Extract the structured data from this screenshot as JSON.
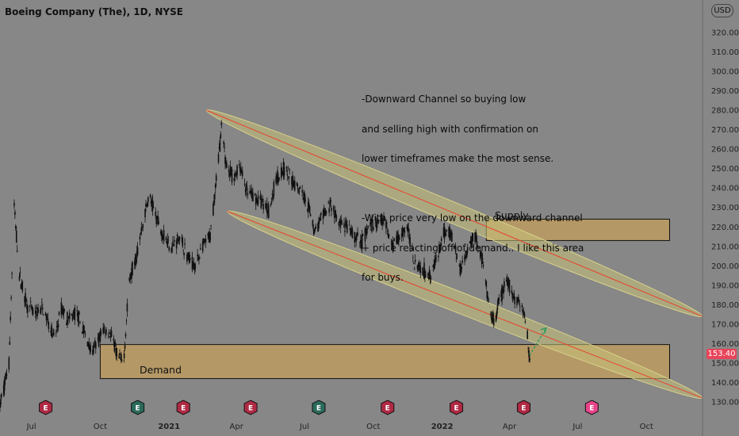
{
  "header": {
    "title": "Boeing Company (The), 1D, NYSE",
    "currency_label": "USD"
  },
  "annotation": {
    "lines": [
      "-Downward Channel so buying low",
      "and selling high with confirmation on",
      "lower timeframes make the most sense.",
      "",
      "-With price very low on the downward channel",
      "+ price reacting off of demand.. I like this area",
      "for buys."
    ]
  },
  "zones": {
    "supply": {
      "label": "Supply",
      "low": 213,
      "high": 224,
      "from": "2022-03",
      "to": "2022-11"
    },
    "demand": {
      "label": "Demand",
      "low": 142,
      "high": 159.5,
      "from": "2020-10",
      "to": "2022-11"
    }
  },
  "last_price": {
    "label": "153.40",
    "value": 153.4
  },
  "colors": {
    "background": "#878787",
    "zone_fill": "#d9a64a",
    "channel_fill": "#c8c27a",
    "channel_line": "#e8412b",
    "price_tag": "#e8445a",
    "up_arrow": "#2e9a5e",
    "candles": "#111111"
  },
  "event_markers": [
    {
      "icon": "earnings-icon",
      "label": "E",
      "color": "#b02a44",
      "date": "2020-07"
    },
    {
      "icon": "earnings-icon",
      "label": "E",
      "color": "#2a6a5a",
      "date": "2020-11"
    },
    {
      "icon": "earnings-icon",
      "label": "E",
      "color": "#b02a44",
      "date": "2021-01"
    },
    {
      "icon": "earnings-icon",
      "label": "E",
      "color": "#b02a44",
      "date": "2021-04"
    },
    {
      "icon": "earnings-icon",
      "label": "E",
      "color": "#2a6a5a",
      "date": "2021-07"
    },
    {
      "icon": "earnings-icon",
      "label": "E",
      "color": "#b02a44",
      "date": "2021-10"
    },
    {
      "icon": "earnings-icon",
      "label": "E",
      "color": "#b02a44",
      "date": "2022-01"
    },
    {
      "icon": "earnings-icon",
      "label": "E",
      "color": "#b02a44",
      "date": "2022-04"
    },
    {
      "icon": "earnings-icon",
      "label": "E",
      "color": "#e8448a",
      "date": "2022-07"
    }
  ],
  "chart_data": {
    "type": "candlestick",
    "title": "Boeing Company (The), 1D, NYSE",
    "xlabel": "",
    "ylabel": "",
    "ylim": [
      124,
      322
    ],
    "y_ticks": [
      "130.00",
      "140.00",
      "150.00",
      "160.00",
      "170.00",
      "180.00",
      "190.00",
      "200.00",
      "210.00",
      "220.00",
      "230.00",
      "240.00",
      "250.00",
      "260.00",
      "270.00",
      "280.00",
      "290.00",
      "300.00",
      "310.00",
      "320.00"
    ],
    "x_ticks": [
      "Jul",
      "Oct",
      "2021",
      "Apr",
      "Jul",
      "Oct",
      "2022",
      "Apr",
      "Jul",
      "Oct"
    ],
    "x_range": [
      "2020-05-20",
      "2022-12-15"
    ],
    "grid": false,
    "series": [
      {
        "points": [
          [
            "2020-05-20",
            128
          ],
          [
            "2020-06-01",
            150
          ],
          [
            "2020-06-08",
            230
          ],
          [
            "2020-06-15",
            195
          ],
          [
            "2020-06-25",
            180
          ],
          [
            "2020-07-05",
            175
          ],
          [
            "2020-07-15",
            178
          ],
          [
            "2020-07-25",
            170
          ],
          [
            "2020-08-01",
            162
          ],
          [
            "2020-08-10",
            178
          ],
          [
            "2020-08-20",
            172
          ],
          [
            "2020-08-30",
            176
          ],
          [
            "2020-09-10",
            165
          ],
          [
            "2020-09-20",
            155
          ],
          [
            "2020-09-30",
            163
          ],
          [
            "2020-10-05",
            167
          ],
          [
            "2020-10-15",
            165
          ],
          [
            "2020-10-25",
            152
          ],
          [
            "2020-11-01",
            150
          ],
          [
            "2020-11-09",
            193
          ],
          [
            "2020-11-20",
            208
          ],
          [
            "2020-11-27",
            222
          ],
          [
            "2020-12-05",
            236
          ],
          [
            "2020-12-15",
            225
          ],
          [
            "2020-12-25",
            215
          ],
          [
            "2021-01-05",
            210
          ],
          [
            "2021-01-15",
            215
          ],
          [
            "2021-01-25",
            205
          ],
          [
            "2021-02-05",
            200
          ],
          [
            "2021-02-15",
            210
          ],
          [
            "2021-02-25",
            215
          ],
          [
            "2021-03-05",
            245
          ],
          [
            "2021-03-12",
            270
          ],
          [
            "2021-03-18",
            253
          ],
          [
            "2021-03-28",
            244
          ],
          [
            "2021-04-05",
            252
          ],
          [
            "2021-04-15",
            238
          ],
          [
            "2021-04-25",
            235
          ],
          [
            "2021-05-05",
            233
          ],
          [
            "2021-05-15",
            228
          ],
          [
            "2021-05-25",
            246
          ],
          [
            "2021-06-05",
            250
          ],
          [
            "2021-06-15",
            243
          ],
          [
            "2021-06-25",
            240
          ],
          [
            "2021-07-05",
            232
          ],
          [
            "2021-07-15",
            218
          ],
          [
            "2021-07-25",
            225
          ],
          [
            "2021-08-05",
            232
          ],
          [
            "2021-08-15",
            222
          ],
          [
            "2021-08-25",
            220
          ],
          [
            "2021-09-05",
            215
          ],
          [
            "2021-09-15",
            212
          ],
          [
            "2021-09-25",
            220
          ],
          [
            "2021-10-05",
            222
          ],
          [
            "2021-10-15",
            225
          ],
          [
            "2021-10-25",
            210
          ],
          [
            "2021-11-05",
            215
          ],
          [
            "2021-11-15",
            220
          ],
          [
            "2021-11-25",
            202
          ],
          [
            "2021-12-05",
            198
          ],
          [
            "2021-12-15",
            196
          ],
          [
            "2021-12-25",
            203
          ],
          [
            "2022-01-05",
            218
          ],
          [
            "2022-01-15",
            215
          ],
          [
            "2022-01-25",
            198
          ],
          [
            "2022-02-05",
            210
          ],
          [
            "2022-02-15",
            216
          ],
          [
            "2022-02-25",
            200
          ],
          [
            "2022-03-05",
            176
          ],
          [
            "2022-03-12",
            170
          ],
          [
            "2022-03-20",
            185
          ],
          [
            "2022-03-30",
            192
          ],
          [
            "2022-04-08",
            182
          ],
          [
            "2022-04-15",
            182
          ],
          [
            "2022-04-22",
            172
          ],
          [
            "2022-04-28",
            153.4
          ]
        ]
      }
    ],
    "channel": {
      "upper_line": [
        [
          "2021-02-20",
          280
        ],
        [
          "2022-12-15",
          174
        ]
      ],
      "lower_line": [
        [
          "2021-03-20",
          228
        ],
        [
          "2022-12-15",
          132
        ]
      ]
    },
    "annotations": [
      {
        "text": "Supply",
        "type": "zone"
      },
      {
        "text": "Demand",
        "type": "zone"
      },
      {
        "type": "arrow",
        "from": [
          "2022-04-28",
          154
        ],
        "to": [
          "2022-05-20",
          168
        ]
      }
    ],
    "last_value": 153.4
  }
}
